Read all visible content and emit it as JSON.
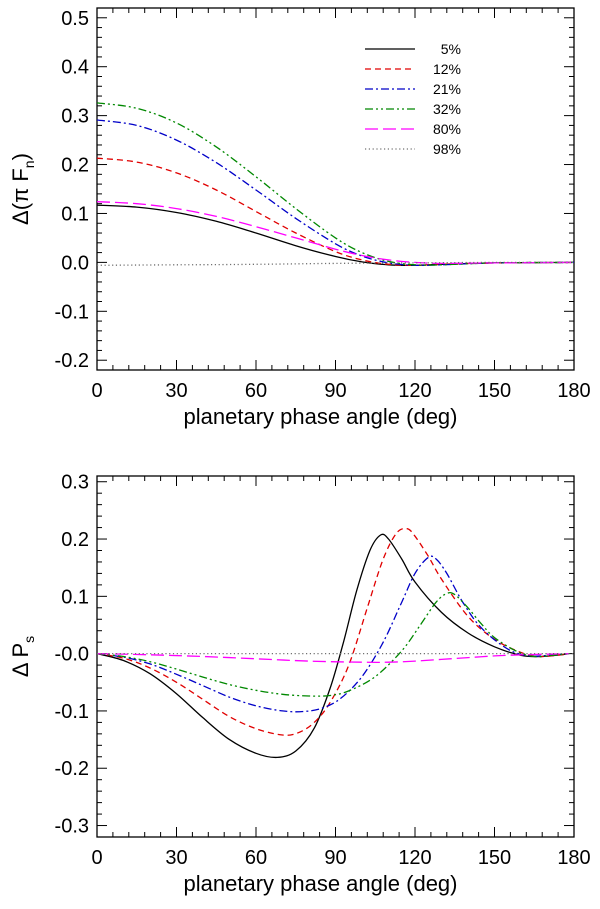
{
  "chart_data": [
    {
      "type": "line",
      "xlabel": "planetary phase angle (deg)",
      "ylabel": "Δ(π F",
      "ylabel_sub": "n",
      "ylabel_close": ")",
      "xlim": [
        0,
        180
      ],
      "ylim": [
        -0.22,
        0.52
      ],
      "xticks": [
        0,
        30,
        60,
        90,
        120,
        150,
        180
      ],
      "xtick_labels": [
        "0",
        "30",
        "60",
        "90",
        "120",
        "150",
        "180"
      ],
      "yticks": [
        -0.2,
        -0.1,
        0.0,
        0.1,
        0.2,
        0.3,
        0.4,
        0.5
      ],
      "ytick_labels": [
        "-0.2",
        "-0.1",
        "0.0",
        "0.1",
        "0.2",
        "0.3",
        "0.4",
        "0.5"
      ],
      "legend": "top-right",
      "series": [
        {
          "name": "5%",
          "color": "#000000",
          "dash": "solid",
          "x": [
            0,
            15,
            30,
            45,
            60,
            75,
            90,
            100,
            110,
            120,
            130,
            150,
            180
          ],
          "y": [
            0.117,
            0.113,
            0.102,
            0.084,
            0.06,
            0.034,
            0.012,
            0.001,
            -0.005,
            -0.006,
            -0.004,
            -0.001,
            0.0
          ]
        },
        {
          "name": "12%",
          "color": "#e00000",
          "dash": "dashed",
          "x": [
            0,
            15,
            30,
            45,
            60,
            75,
            90,
            100,
            110,
            120,
            130,
            150,
            180
          ],
          "y": [
            0.213,
            0.205,
            0.183,
            0.148,
            0.104,
            0.06,
            0.022,
            0.005,
            -0.004,
            -0.006,
            -0.004,
            -0.001,
            0.0
          ]
        },
        {
          "name": "21%",
          "color": "#0000c8",
          "dash": "dashdot",
          "x": [
            0,
            15,
            30,
            45,
            60,
            75,
            90,
            100,
            110,
            120,
            130,
            150,
            180
          ],
          "y": [
            0.291,
            0.28,
            0.25,
            0.204,
            0.148,
            0.09,
            0.038,
            0.013,
            -0.001,
            -0.006,
            -0.005,
            -0.001,
            0.0
          ]
        },
        {
          "name": "32%",
          "color": "#008800",
          "dash": "dashdotdot",
          "x": [
            0,
            15,
            30,
            45,
            60,
            75,
            90,
            100,
            110,
            120,
            130,
            150,
            180
          ],
          "y": [
            0.326,
            0.315,
            0.285,
            0.236,
            0.175,
            0.11,
            0.05,
            0.02,
            0.002,
            -0.005,
            -0.005,
            -0.001,
            0.0
          ]
        },
        {
          "name": "80%",
          "color": "#ff00ff",
          "dash": "longdash",
          "x": [
            0,
            15,
            30,
            45,
            60,
            75,
            90,
            100,
            110,
            120,
            130,
            150,
            180
          ],
          "y": [
            0.124,
            0.12,
            0.11,
            0.094,
            0.073,
            0.05,
            0.027,
            0.014,
            0.005,
            0.0,
            -0.002,
            -0.001,
            0.0
          ]
        },
        {
          "name": "98%",
          "color": "#707070",
          "dash": "dotted",
          "x": [
            0,
            30,
            60,
            90,
            120,
            150,
            180
          ],
          "y": [
            -0.006,
            -0.005,
            -0.004,
            -0.002,
            -0.001,
            0.0,
            0.0
          ]
        }
      ]
    },
    {
      "type": "line",
      "xlabel": "planetary phase angle (deg)",
      "ylabel": "Δ P",
      "ylabel_sub": "s",
      "ylabel_close": "",
      "xlim": [
        0,
        180
      ],
      "ylim": [
        -0.32,
        0.31
      ],
      "xticks": [
        0,
        30,
        60,
        90,
        120,
        150,
        180
      ],
      "xtick_labels": [
        "0",
        "30",
        "60",
        "90",
        "120",
        "150",
        "180"
      ],
      "yticks": [
        -0.3,
        -0.2,
        -0.1,
        0.0,
        0.1,
        0.2,
        0.3
      ],
      "ytick_labels": [
        "-0.3",
        "-0.2",
        "-0.1",
        "-0.0",
        "0.1",
        "0.2",
        "0.3"
      ],
      "series": [
        {
          "name": "5%",
          "color": "#000000",
          "dash": "solid",
          "x": [
            0,
            10,
            20,
            30,
            40,
            50,
            60,
            68,
            75,
            82,
            88,
            93,
            98,
            103,
            107,
            110,
            115,
            120,
            130,
            140,
            150,
            160,
            167,
            175,
            178
          ],
          "y": [
            0.0,
            -0.012,
            -0.035,
            -0.07,
            -0.112,
            -0.15,
            -0.174,
            -0.181,
            -0.17,
            -0.13,
            -0.06,
            0.02,
            0.11,
            0.18,
            0.207,
            0.2,
            0.165,
            0.125,
            0.072,
            0.036,
            0.012,
            -0.003,
            -0.005,
            -0.002,
            0.0
          ]
        },
        {
          "name": "12%",
          "color": "#e00000",
          "dash": "dashed",
          "x": [
            0,
            10,
            20,
            30,
            40,
            50,
            60,
            70,
            76,
            82,
            88,
            95,
            102,
            108,
            113,
            117,
            120,
            125,
            130,
            140,
            150,
            160,
            167,
            175,
            178
          ],
          "y": [
            0.0,
            -0.008,
            -0.025,
            -0.05,
            -0.08,
            -0.11,
            -0.131,
            -0.142,
            -0.138,
            -0.12,
            -0.085,
            -0.02,
            0.08,
            0.165,
            0.21,
            0.218,
            0.205,
            0.17,
            0.13,
            0.065,
            0.025,
            0.002,
            -0.005,
            -0.002,
            0.0
          ]
        },
        {
          "name": "21%",
          "color": "#0000c8",
          "dash": "dashdot",
          "x": [
            0,
            10,
            20,
            30,
            40,
            50,
            60,
            70,
            78,
            85,
            92,
            100,
            108,
            115,
            120,
            125,
            128,
            132,
            138,
            145,
            155,
            163,
            170,
            178
          ],
          "y": [
            0.0,
            -0.006,
            -0.018,
            -0.036,
            -0.056,
            -0.076,
            -0.091,
            -0.1,
            -0.101,
            -0.095,
            -0.078,
            -0.04,
            0.02,
            0.09,
            0.14,
            0.168,
            0.165,
            0.14,
            0.09,
            0.045,
            0.008,
            -0.004,
            -0.003,
            0.0
          ]
        },
        {
          "name": "32%",
          "color": "#008800",
          "dash": "dashdotdot",
          "x": [
            0,
            10,
            20,
            30,
            40,
            50,
            60,
            70,
            80,
            88,
            95,
            105,
            115,
            122,
            128,
            132,
            135,
            140,
            145,
            150,
            158,
            165,
            172,
            178
          ],
          "y": [
            0.0,
            -0.005,
            -0.014,
            -0.027,
            -0.041,
            -0.054,
            -0.064,
            -0.071,
            -0.074,
            -0.073,
            -0.065,
            -0.04,
            0.005,
            0.05,
            0.09,
            0.105,
            0.103,
            0.08,
            0.052,
            0.028,
            0.005,
            -0.005,
            -0.003,
            0.0
          ]
        },
        {
          "name": "80%",
          "color": "#ff00ff",
          "dash": "longdash",
          "x": [
            0,
            20,
            40,
            60,
            80,
            100,
            110,
            120,
            130,
            140,
            150,
            160,
            170,
            178
          ],
          "y": [
            0.0,
            -0.002,
            -0.005,
            -0.009,
            -0.013,
            -0.015,
            -0.015,
            -0.013,
            -0.01,
            -0.007,
            -0.004,
            -0.002,
            -0.001,
            0.0
          ]
        },
        {
          "name": "98%",
          "color": "#707070",
          "dash": "dotted",
          "x": [
            0,
            60,
            120,
            180
          ],
          "y": [
            0.0,
            0.0,
            0.0,
            0.0
          ]
        }
      ]
    }
  ]
}
